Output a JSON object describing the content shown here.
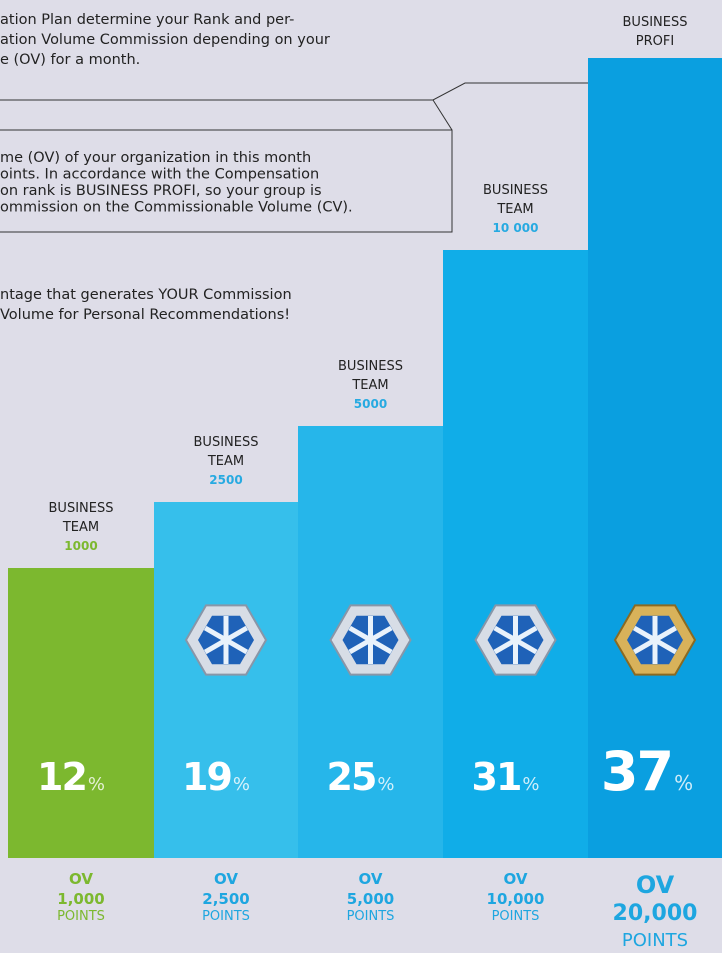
{
  "intro": [
    "ation Plan determine your Rank and per-",
    "ation Volume Commission depending on your",
    "e (OV) for a month."
  ],
  "note": [
    "me (OV) of your organization in this month",
    "oints. In accordance with the Compensation",
    "on rank is BUSINESS PROFI, so your group is",
    "ommission on the Commissionable Volume (CV)."
  ],
  "footer": [
    "ntage that generates YOUR Commission",
    " Volume for Personal Recommendations!"
  ],
  "columns": [
    {
      "rank": [
        "BUSINESS",
        "TEAM"
      ],
      "level": "1000",
      "percent": "12",
      "percent_sign": "%",
      "ov": "OV",
      "points": "1,000",
      "unit": "POINTS"
    },
    {
      "rank": [
        "BUSINESS",
        "TEAM"
      ],
      "level": "2500",
      "percent": "19",
      "percent_sign": "%",
      "ov": "OV",
      "points": "2,500",
      "unit": "POINTS"
    },
    {
      "rank": [
        "BUSINESS",
        "TEAM"
      ],
      "level": "5000",
      "percent": "25",
      "percent_sign": "%",
      "ov": "OV",
      "points": "5,000",
      "unit": "POINTS"
    },
    {
      "rank": [
        "BUSINESS",
        "TEAM"
      ],
      "level": "10 000",
      "percent": "31",
      "percent_sign": "%",
      "ov": "OV",
      "points": "10,000",
      "unit": "POINTS"
    },
    {
      "rank": [
        "BUSINESS",
        "PROFI"
      ],
      "percent": "37",
      "percent_sign": "%",
      "ov": "OV",
      "points": "20,000",
      "unit": "POINTS"
    }
  ]
}
